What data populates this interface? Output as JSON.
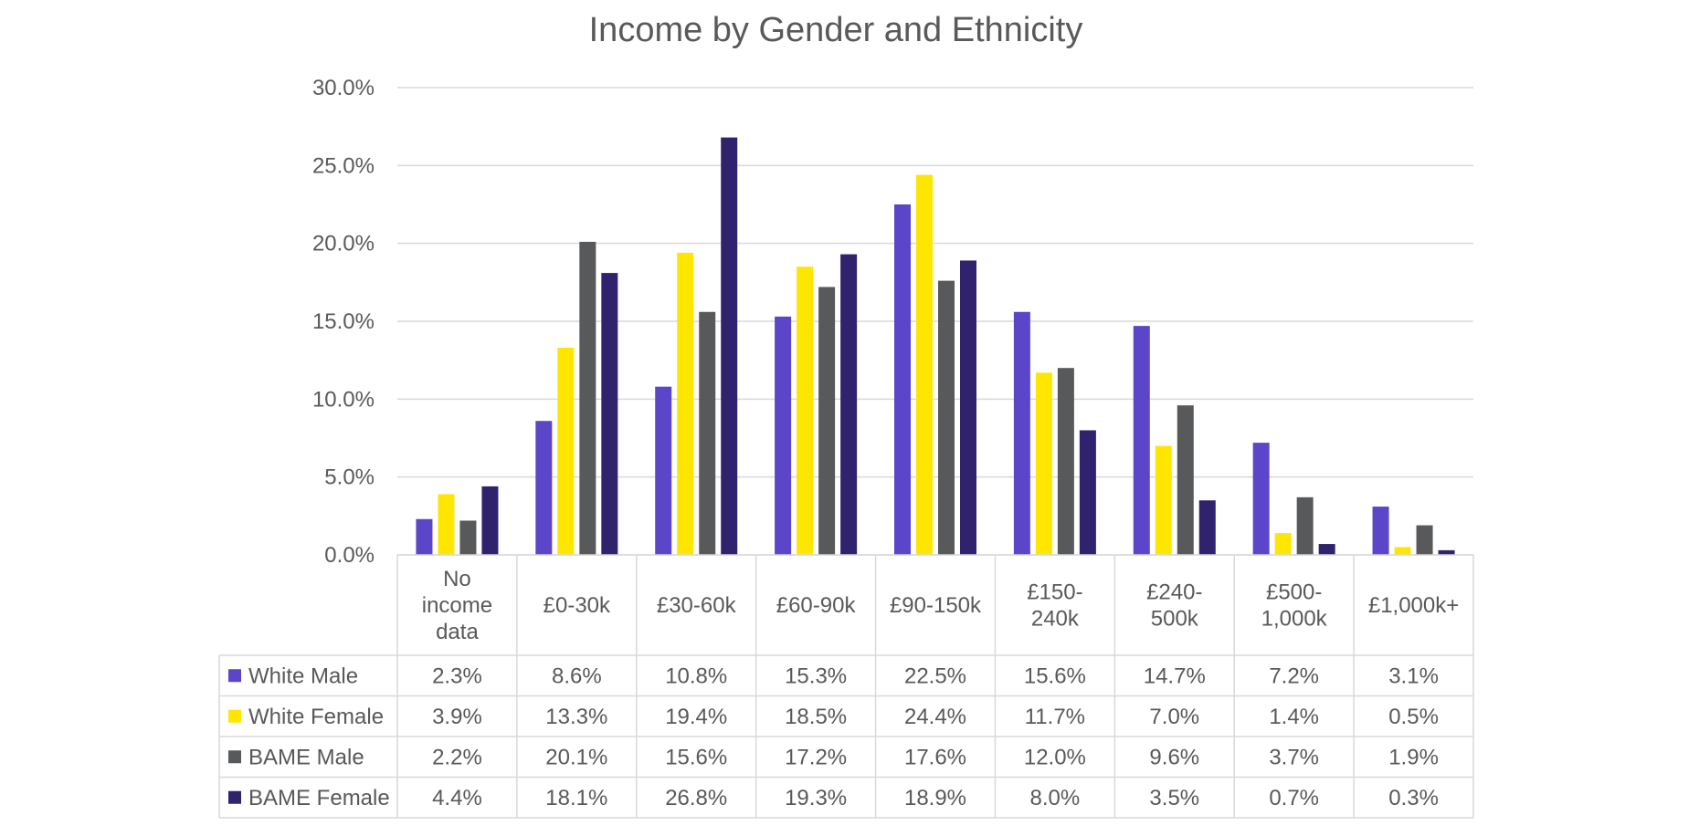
{
  "chart_data": {
    "type": "bar",
    "title": "Income by Gender and Ethnicity",
    "xlabel": "",
    "ylabel": "",
    "ylim": [
      0,
      30
    ],
    "y_ticks": [
      "0.0%",
      "5.0%",
      "10.0%",
      "15.0%",
      "20.0%",
      "25.0%",
      "30.0%"
    ],
    "grid": true,
    "legend_placement": "data-table-left",
    "categories": [
      "No income data",
      "£0-30k",
      "£30-60k",
      "£60-90k",
      "£90-150k",
      "£150-240k",
      "£240-500k",
      "£500-1,000k",
      "£1,000k+"
    ],
    "category_lines": [
      [
        "No",
        "income",
        "data"
      ],
      [
        "£0-30k"
      ],
      [
        "£30-60k"
      ],
      [
        "£60-90k"
      ],
      [
        "£90-150k"
      ],
      [
        "£150-",
        "240k"
      ],
      [
        "£240-",
        "500k"
      ],
      [
        "£500-",
        "1,000k"
      ],
      [
        "£1,000k+"
      ]
    ],
    "series": [
      {
        "name": "White Male",
        "color": "#5b45c8",
        "values": [
          2.3,
          8.6,
          10.8,
          15.3,
          22.5,
          15.6,
          14.7,
          7.2,
          3.1
        ],
        "labels": [
          "2.3%",
          "8.6%",
          "10.8%",
          "15.3%",
          "22.5%",
          "15.6%",
          "14.7%",
          "7.2%",
          "3.1%"
        ]
      },
      {
        "name": "White Female",
        "color": "#ffe600",
        "values": [
          3.9,
          13.3,
          19.4,
          18.5,
          24.4,
          11.7,
          7.0,
          1.4,
          0.5
        ],
        "labels": [
          "3.9%",
          "13.3%",
          "19.4%",
          "18.5%",
          "24.4%",
          "11.7%",
          "7.0%",
          "1.4%",
          "0.5%"
        ]
      },
      {
        "name": "BAME Male",
        "color": "#58595b",
        "values": [
          2.2,
          20.1,
          15.6,
          17.2,
          17.6,
          12.0,
          9.6,
          3.7,
          1.9
        ],
        "labels": [
          "2.2%",
          "20.1%",
          "15.6%",
          "17.2%",
          "17.6%",
          "12.0%",
          "9.6%",
          "3.7%",
          "1.9%"
        ]
      },
      {
        "name": "BAME Female",
        "color": "#31226e",
        "values": [
          4.4,
          18.1,
          26.8,
          19.3,
          18.9,
          8.0,
          3.5,
          0.7,
          0.3
        ],
        "labels": [
          "4.4%",
          "18.1%",
          "26.8%",
          "19.3%",
          "18.9%",
          "8.0%",
          "3.5%",
          "0.7%",
          "0.3%"
        ]
      }
    ]
  }
}
